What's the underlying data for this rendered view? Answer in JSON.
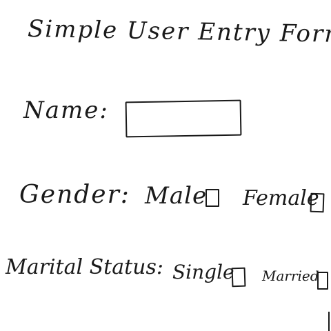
{
  "form": {
    "title": "Simple User Entry Form",
    "name_label": "Name:",
    "gender_label": "Gender:",
    "gender_options": [
      "Male",
      "Female"
    ],
    "marital_label": "Marital Status:",
    "marital_options": [
      "Single",
      "Married"
    ]
  }
}
